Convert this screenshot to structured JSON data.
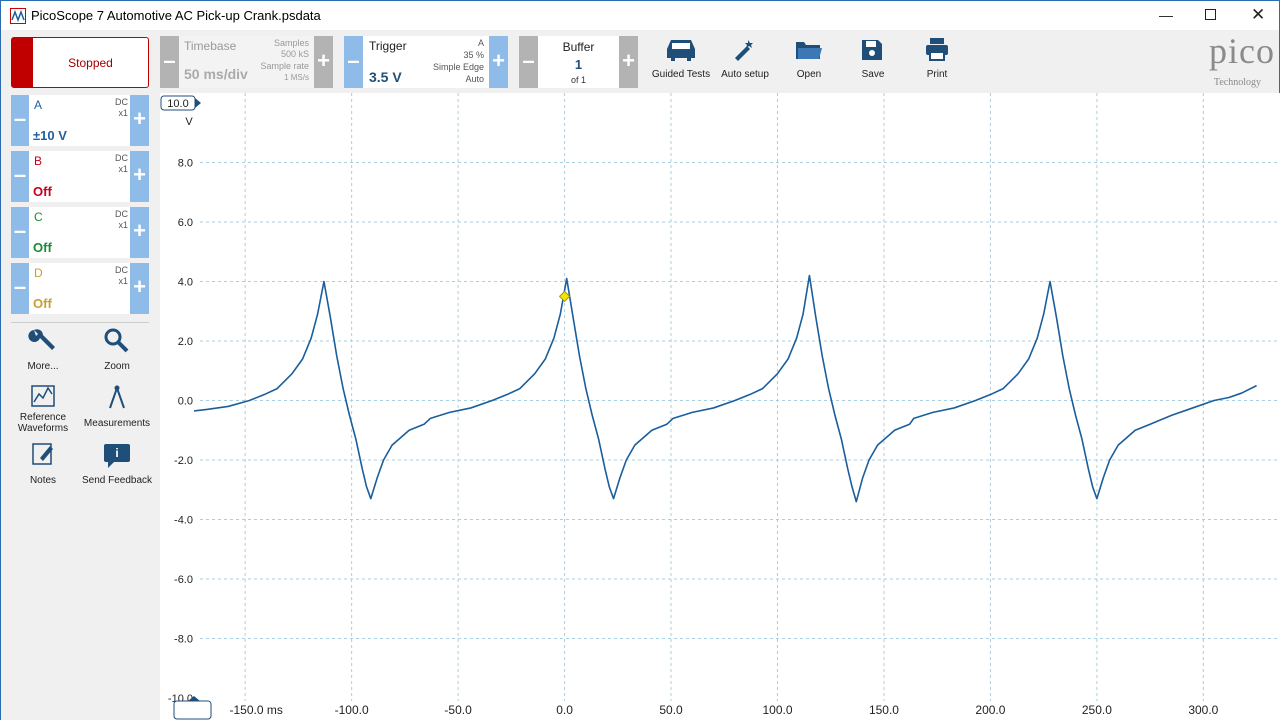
{
  "window": {
    "title": "PicoScope 7 Automotive AC Pick-up Crank.psdata"
  },
  "toolbar": {
    "run_state": "Stopped",
    "timebase": {
      "label": "Timebase",
      "value": "50 ms/div",
      "samples_label": "Samples",
      "samples": "500 kS",
      "rate_label": "Sample rate",
      "rate": "1 MS/s"
    },
    "trigger": {
      "label": "Trigger",
      "level": "3.5 V",
      "channel": "A",
      "position": "35 %",
      "type": "Simple Edge",
      "mode": "Auto"
    },
    "buffer": {
      "label": "Buffer",
      "index": "1",
      "count": "of 1"
    },
    "buttons": [
      "Guided Tests",
      "Auto setup",
      "Open",
      "Save",
      "Print"
    ],
    "logo": {
      "name": "pico",
      "tagline": "Technology"
    }
  },
  "channels": [
    {
      "name": "A",
      "coupling": "DC",
      "probe": "x1",
      "range": "±10 V",
      "color": "#1f5f9e"
    },
    {
      "name": "B",
      "coupling": "DC",
      "probe": "x1",
      "range": "Off",
      "color": "#c8001e"
    },
    {
      "name": "C",
      "coupling": "DC",
      "probe": "x1",
      "range": "Off",
      "color": "#1a8a3a"
    },
    {
      "name": "D",
      "coupling": "DC",
      "probe": "x1",
      "range": "Off",
      "color": "#c8a030"
    }
  ],
  "tools": [
    "More...",
    "Zoom",
    "Reference Waveforms",
    "Measurements",
    "Notes",
    "Send Feedback"
  ],
  "chart_data": {
    "type": "line",
    "y_label": "V",
    "x": [
      -174,
      -168,
      -158,
      -148,
      -141,
      -135,
      -128,
      -123,
      -119,
      -116,
      -113,
      -110,
      -107,
      -104,
      -101,
      -98,
      -95,
      -93,
      -91,
      -88,
      -85,
      -81,
      -73,
      -66,
      -63,
      -54,
      -44,
      -34,
      -27,
      -21,
      -14,
      -9,
      -5,
      -2,
      1,
      4,
      7,
      10,
      13,
      16,
      19,
      21,
      23,
      26,
      29,
      33,
      41,
      48,
      51,
      60,
      70,
      80,
      87,
      93,
      100,
      105,
      109,
      112,
      115,
      118,
      121,
      124,
      127,
      130,
      133,
      135,
      137,
      140,
      143,
      147,
      155,
      162,
      164,
      173,
      183,
      193,
      200,
      206,
      213,
      218,
      222,
      225,
      228,
      231,
      234,
      237,
      240,
      243,
      246,
      248,
      250,
      253,
      256,
      260,
      268,
      275,
      285,
      295,
      305,
      312,
      318,
      325
    ],
    "series": [
      {
        "name": "A",
        "color": "#1a5e9c",
        "values": [
          -0.35,
          -0.3,
          -0.2,
          0.0,
          0.2,
          0.4,
          0.9,
          1.4,
          2.1,
          2.9,
          4.0,
          2.8,
          1.5,
          0.4,
          -0.5,
          -1.3,
          -2.3,
          -2.9,
          -3.3,
          -2.6,
          -2.0,
          -1.5,
          -1.0,
          -0.8,
          -0.6,
          -0.4,
          -0.25,
          0.0,
          0.2,
          0.4,
          0.9,
          1.4,
          2.1,
          2.9,
          4.1,
          2.8,
          1.5,
          0.4,
          -0.5,
          -1.3,
          -2.3,
          -2.9,
          -3.3,
          -2.6,
          -2.0,
          -1.5,
          -1.0,
          -0.8,
          -0.6,
          -0.4,
          -0.25,
          0.0,
          0.2,
          0.4,
          0.9,
          1.4,
          2.1,
          2.9,
          4.2,
          2.8,
          1.5,
          0.4,
          -0.5,
          -1.3,
          -2.3,
          -2.9,
          -3.4,
          -2.6,
          -2.0,
          -1.5,
          -1.0,
          -0.8,
          -0.6,
          -0.4,
          -0.25,
          0.0,
          0.2,
          0.4,
          0.9,
          1.4,
          2.1,
          2.9,
          4.0,
          2.8,
          1.5,
          0.4,
          -0.5,
          -1.3,
          -2.3,
          -2.9,
          -3.3,
          -2.6,
          -2.0,
          -1.5,
          -1.0,
          -0.8,
          -0.5,
          -0.25,
          0.0,
          0.1,
          0.25,
          0.5
        ]
      }
    ],
    "trigger_point": {
      "x": 0,
      "y": 3.5
    },
    "xlim": [
      -190,
      336
    ],
    "ylim": [
      -10,
      10
    ],
    "xticks": [
      {
        "value": -150,
        "label": "-150.0 ms"
      },
      {
        "value": -100,
        "label": "-100.0"
      },
      {
        "value": -50,
        "label": "-50.0"
      },
      {
        "value": 0,
        "label": "0.0"
      },
      {
        "value": 50,
        "label": "50.0"
      },
      {
        "value": 100,
        "label": "100.0"
      },
      {
        "value": 150,
        "label": "150.0"
      },
      {
        "value": 200,
        "label": "200.0"
      },
      {
        "value": 250,
        "label": "250.0"
      },
      {
        "value": 300,
        "label": "300.0"
      }
    ],
    "yticks": [
      {
        "value": 10,
        "label": "10.0"
      },
      {
        "value": 8,
        "label": "8.0"
      },
      {
        "value": 6,
        "label": "6.0"
      },
      {
        "value": 4,
        "label": "4.0"
      },
      {
        "value": 2,
        "label": "2.0"
      },
      {
        "value": 0,
        "label": "0.0"
      },
      {
        "value": -2,
        "label": "-2.0"
      },
      {
        "value": -4,
        "label": "-4.0"
      },
      {
        "value": -6,
        "label": "-6.0"
      },
      {
        "value": -8,
        "label": "-8.0"
      },
      {
        "value": -10,
        "label": "-10.0"
      }
    ],
    "grid": true
  }
}
